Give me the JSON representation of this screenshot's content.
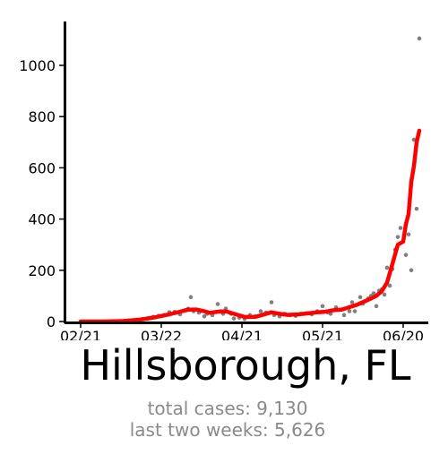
{
  "chart_data": {
    "type": "scatter",
    "title": "Hillsborough, FL",
    "subtitle_lines": [
      "total cases: 9,130",
      "last two weeks: 5,626"
    ],
    "xlabel": "",
    "ylabel": "",
    "x_tick_labels": [
      "02/21",
      "03/22",
      "04/21",
      "05/21",
      "06/20"
    ],
    "y_tick_labels": [
      "0",
      "200",
      "400",
      "600",
      "800",
      "1000"
    ],
    "ylim": [
      0,
      1180
    ],
    "xlim": [
      "2020-02-17",
      "2020-07-01"
    ],
    "grid": false,
    "colors": {
      "points": "#808080",
      "trend": "#ff0000"
    },
    "series": [
      {
        "kind": "daily-points",
        "points": [
          [
            "2020-03-10",
            3
          ],
          [
            "2020-03-13",
            6
          ],
          [
            "2020-03-15",
            10
          ],
          [
            "2020-03-17",
            12
          ],
          [
            "2020-03-19",
            18
          ],
          [
            "2020-03-21",
            22
          ],
          [
            "2020-03-23",
            25
          ],
          [
            "2020-03-25",
            36
          ],
          [
            "2020-03-27",
            38
          ],
          [
            "2020-03-29",
            28
          ],
          [
            "2020-03-31",
            45
          ],
          [
            "2020-04-01",
            50
          ],
          [
            "2020-04-02",
            95
          ],
          [
            "2020-04-03",
            40
          ],
          [
            "2020-04-05",
            35
          ],
          [
            "2020-04-07",
            20
          ],
          [
            "2020-04-08",
            30
          ],
          [
            "2020-04-10",
            25
          ],
          [
            "2020-04-12",
            68
          ],
          [
            "2020-04-13",
            40
          ],
          [
            "2020-04-14",
            30
          ],
          [
            "2020-04-15",
            50
          ],
          [
            "2020-04-17",
            30
          ],
          [
            "2020-04-18",
            12
          ],
          [
            "2020-04-20",
            15
          ],
          [
            "2020-04-22",
            10
          ],
          [
            "2020-04-24",
            25
          ],
          [
            "2020-04-26",
            20
          ],
          [
            "2020-04-28",
            40
          ],
          [
            "2020-04-30",
            35
          ],
          [
            "2020-05-02",
            75
          ],
          [
            "2020-05-03",
            25
          ],
          [
            "2020-05-05",
            20
          ],
          [
            "2020-05-07",
            30
          ],
          [
            "2020-05-09",
            25
          ],
          [
            "2020-05-11",
            22
          ],
          [
            "2020-05-13",
            30
          ],
          [
            "2020-05-15",
            32
          ],
          [
            "2020-05-17",
            28
          ],
          [
            "2020-05-19",
            40
          ],
          [
            "2020-05-21",
            60
          ],
          [
            "2020-05-23",
            35
          ],
          [
            "2020-05-24",
            30
          ],
          [
            "2020-05-26",
            55
          ],
          [
            "2020-05-27",
            45
          ],
          [
            "2020-05-29",
            25
          ],
          [
            "2020-05-31",
            40
          ],
          [
            "2020-06-01",
            75
          ],
          [
            "2020-06-02",
            40
          ],
          [
            "2020-06-04",
            95
          ],
          [
            "2020-06-05",
            70
          ],
          [
            "2020-06-06",
            80
          ],
          [
            "2020-06-07",
            90
          ],
          [
            "2020-06-08",
            100
          ],
          [
            "2020-06-09",
            110
          ],
          [
            "2020-06-10",
            60
          ],
          [
            "2020-06-11",
            120
          ],
          [
            "2020-06-12",
            125
          ],
          [
            "2020-06-13",
            105
          ],
          [
            "2020-06-14",
            210
          ],
          [
            "2020-06-15",
            140
          ],
          [
            "2020-06-16",
            205
          ],
          [
            "2020-06-17",
            280
          ],
          [
            "2020-06-18",
            330
          ],
          [
            "2020-06-19",
            365
          ],
          [
            "2020-06-21",
            260
          ],
          [
            "2020-06-22",
            340
          ],
          [
            "2020-06-23",
            200
          ],
          [
            "2020-06-24",
            710
          ],
          [
            "2020-06-25",
            440
          ],
          [
            "2020-06-26",
            1105
          ]
        ]
      },
      {
        "kind": "rolling-average",
        "points": [
          [
            "2020-02-21",
            0
          ],
          [
            "2020-03-01",
            0
          ],
          [
            "2020-03-08",
            2
          ],
          [
            "2020-03-14",
            7
          ],
          [
            "2020-03-20",
            17
          ],
          [
            "2020-03-25",
            28
          ],
          [
            "2020-03-29",
            38
          ],
          [
            "2020-04-01",
            46
          ],
          [
            "2020-04-04",
            47
          ],
          [
            "2020-04-07",
            40
          ],
          [
            "2020-04-09",
            34
          ],
          [
            "2020-04-12",
            38
          ],
          [
            "2020-04-15",
            40
          ],
          [
            "2020-04-18",
            30
          ],
          [
            "2020-04-22",
            18
          ],
          [
            "2020-04-26",
            18
          ],
          [
            "2020-04-29",
            27
          ],
          [
            "2020-05-02",
            36
          ],
          [
            "2020-05-05",
            30
          ],
          [
            "2020-05-08",
            26
          ],
          [
            "2020-05-12",
            28
          ],
          [
            "2020-05-16",
            32
          ],
          [
            "2020-05-19",
            36
          ],
          [
            "2020-05-22",
            38
          ],
          [
            "2020-05-25",
            44
          ],
          [
            "2020-05-28",
            46
          ],
          [
            "2020-05-31",
            56
          ],
          [
            "2020-06-03",
            66
          ],
          [
            "2020-06-06",
            80
          ],
          [
            "2020-06-08",
            90
          ],
          [
            "2020-06-10",
            100
          ],
          [
            "2020-06-12",
            118
          ],
          [
            "2020-06-14",
            152
          ],
          [
            "2020-06-16",
            225
          ],
          [
            "2020-06-18",
            300
          ],
          [
            "2020-06-20",
            312
          ],
          [
            "2020-06-21",
            380
          ],
          [
            "2020-06-22",
            420
          ],
          [
            "2020-06-23",
            545
          ],
          [
            "2020-06-24",
            608
          ],
          [
            "2020-06-25",
            700
          ],
          [
            "2020-06-26",
            745
          ]
        ]
      }
    ]
  }
}
